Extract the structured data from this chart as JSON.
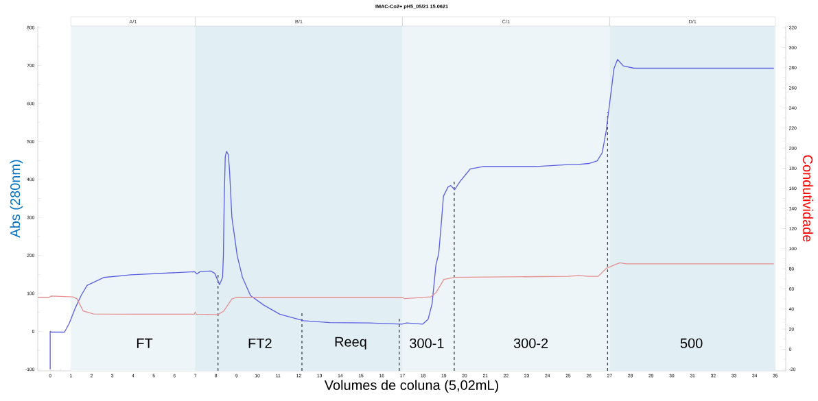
{
  "chart_data": {
    "type": "line",
    "title": "IMAC-Co2+ pH5_05/21 15.0621",
    "xlabel": "Volumes de coluna (5,02mL)",
    "ylabel": "Abs (280nm)",
    "y2label": "Condutividade",
    "xlim": [
      -0.6,
      35.5
    ],
    "ylim": [
      -104,
      804
    ],
    "y2lim": [
      -21.5,
      321.5
    ],
    "xticks": [
      0,
      1,
      2,
      3,
      4,
      5,
      6,
      7,
      8,
      9,
      10,
      11,
      12,
      13,
      14,
      15,
      16,
      17,
      18,
      19,
      20,
      21,
      22,
      23,
      24,
      25,
      26,
      27,
      28,
      29,
      30,
      31,
      32,
      33,
      34,
      35
    ],
    "yticks": [
      -100,
      0,
      100,
      200,
      300,
      400,
      500,
      600,
      700,
      800
    ],
    "y2ticks": [
      -20,
      0,
      20,
      40,
      60,
      80,
      100,
      120,
      140,
      160,
      180,
      200,
      220,
      240,
      260,
      280,
      300,
      320
    ],
    "series": [
      {
        "color": "#5b5fe0",
        "x": [
          0,
          0,
          0.05,
          0.69,
          0.92,
          1.2,
          1.5,
          1.78,
          2.6,
          3.9,
          6.97,
          7.08,
          7.23,
          7.74,
          7.94,
          8.17,
          8.32,
          8.36,
          8.4,
          8.45,
          8.51,
          8.6,
          8.66,
          8.74,
          8.77,
          9.03,
          9.28,
          9.67,
          10.31,
          11.08,
          12.23,
          13.5,
          15.4,
          16.97,
          17.2,
          17.98,
          18.24,
          18.43,
          18.62,
          18.75,
          18.87,
          18.98,
          19.2,
          19.33,
          19.52,
          19.77,
          20.28,
          20.92,
          23.47,
          25.0,
          25.4,
          26.0,
          26.4,
          26.64,
          26.83,
          27.02,
          27.21,
          27.38,
          27.66,
          28.17,
          34.93
        ],
        "values": [
          -100,
          0,
          -2,
          -2,
          21,
          60,
          95,
          121,
          142,
          149,
          157,
          151,
          157,
          159,
          153,
          123,
          142,
          200,
          350,
          460,
          474,
          465,
          420,
          331,
          300,
          198,
          142,
          94,
          69,
          45,
          28,
          23,
          22,
          19,
          22,
          19,
          32,
          72,
          176,
          204,
          280,
          356,
          380,
          384,
          373,
          394,
          428,
          434,
          434,
          439,
          439,
          442,
          449,
          470,
          526,
          609,
          692,
          716,
          699,
          693,
          693
        ]
      },
      {
        "color": "#e59090",
        "axis": "y2",
        "x": [
          -0.6,
          -0.05,
          0.05,
          1.1,
          1.3,
          1.59,
          2.1,
          4,
          6.95,
          7.0,
          7.05,
          8.1,
          8.38,
          8.77,
          9.0,
          17.0,
          17.1,
          18.36,
          18.62,
          19.0,
          19.52,
          25.0,
          25.5,
          26.0,
          26.45,
          26.83,
          27.3,
          27.5,
          27.8,
          34.93
        ],
        "values": [
          51.6,
          51.6,
          52.9,
          52,
          50,
          38,
          35,
          34.8,
          34.8,
          37,
          34.8,
          34.5,
          38,
          50,
          51.6,
          51.6,
          50.3,
          52,
          56.3,
          69.5,
          71.5,
          72.5,
          73.4,
          72.5,
          72.5,
          80.3,
          84.4,
          86,
          85,
          85
        ]
      }
    ],
    "bands": [
      {
        "axis": "x",
        "from": 1,
        "to": 7,
        "label": "A/1",
        "color": "#edf5f9"
      },
      {
        "axis": "x",
        "from": 7,
        "to": 17,
        "label": "B/1",
        "color": "#e1eff5"
      },
      {
        "axis": "x",
        "from": 17,
        "to": 27,
        "label": "C/1",
        "color": "#edf5f9"
      },
      {
        "axis": "x",
        "from": 27,
        "to": 35,
        "label": "D/1",
        "color": "#e1eff5"
      }
    ],
    "ref_lines": [
      {
        "axis": "x",
        "value": 8.1,
        "color": "#333333",
        "line_style": "dashed"
      },
      {
        "axis": "x",
        "value": 12.15,
        "color": "#333333",
        "line_style": "dashed"
      },
      {
        "axis": "x",
        "value": 16.85,
        "color": "#333333",
        "line_style": "dashed"
      },
      {
        "axis": "x",
        "value": 19.5,
        "color": "#333333",
        "line_style": "dashed"
      },
      {
        "axis": "x",
        "value": 26.9,
        "color": "#333333",
        "line_style": "dashed"
      }
    ],
    "annotations": [
      "FT",
      "FT2",
      "Reeq",
      "300-1",
      "300-2",
      "500"
    ]
  }
}
